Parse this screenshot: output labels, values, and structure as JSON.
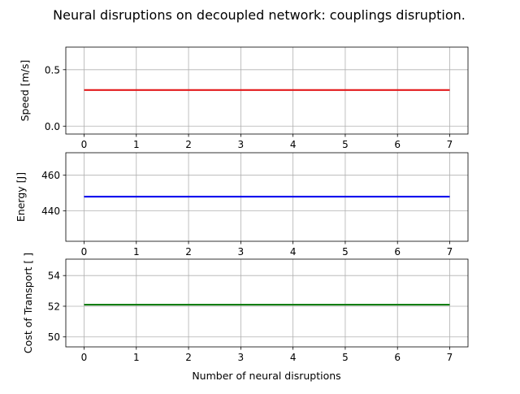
{
  "chart_data": {
    "title": "Neural disruptions on decoupled network: couplings disruption.",
    "type": "line",
    "xlabel": "Number of neural disruptions",
    "grid": true,
    "subplots": [
      {
        "ylabel": "Speed [m/s]",
        "xlim": [
          -0.35,
          7.35
        ],
        "ylim": [
          -0.07,
          0.7
        ],
        "x_ticks": [
          0,
          1,
          2,
          3,
          4,
          5,
          6,
          7
        ],
        "y_ticks": [
          0.0,
          0.5
        ],
        "y_tick_labels": [
          "0.0",
          "0.5"
        ],
        "color": "#e31a1c",
        "x": [
          0,
          1,
          2,
          3,
          4,
          5,
          6,
          7
        ],
        "values": [
          0.32,
          0.32,
          0.32,
          0.32,
          0.32,
          0.32,
          0.32,
          0.32
        ]
      },
      {
        "ylabel": "Energy [J]",
        "xlim": [
          -0.35,
          7.35
        ],
        "ylim": [
          423,
          472.6
        ],
        "x_ticks": [
          0,
          1,
          2,
          3,
          4,
          5,
          6,
          7
        ],
        "y_ticks": [
          440,
          460
        ],
        "y_tick_labels": [
          "440",
          "460"
        ],
        "color": "#0000ee",
        "x": [
          0,
          1,
          2,
          3,
          4,
          5,
          6,
          7
        ],
        "values": [
          448,
          448,
          448,
          448,
          448,
          448,
          448,
          448
        ]
      },
      {
        "ylabel": "Cost of Transport [ ]",
        "xlim": [
          -0.35,
          7.35
        ],
        "ylim": [
          49.35,
          55.07
        ],
        "x_ticks": [
          0,
          1,
          2,
          3,
          4,
          5,
          6,
          7
        ],
        "y_ticks": [
          50,
          52,
          54
        ],
        "y_tick_labels": [
          "50",
          "52",
          "54"
        ],
        "color": "#137e13",
        "x": [
          0,
          1,
          2,
          3,
          4,
          5,
          6,
          7
        ],
        "values": [
          52.1,
          52.1,
          52.1,
          52.1,
          52.1,
          52.1,
          52.1,
          52.1
        ]
      }
    ]
  }
}
